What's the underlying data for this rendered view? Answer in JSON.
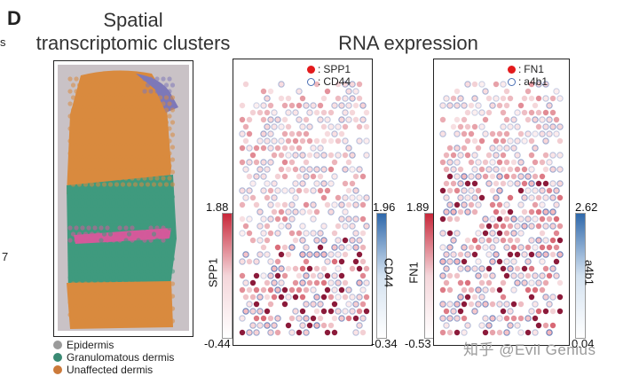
{
  "panel_label": "D",
  "left_edge_fragments": [
    "s",
    "7"
  ],
  "titles": {
    "clusters": "Spatial\ntranscriptomic clusters",
    "rna": "RNA expression"
  },
  "panel1": {
    "key_marker_a": "SPP1",
    "key_marker_b": "CD44",
    "colorbar_left": {
      "label": "SPP1",
      "max": "1.88",
      "min": "-0.44",
      "color": "#c8283a"
    },
    "colorbar_right": {
      "label": "CD44",
      "max": "1.96",
      "min": "-0.34",
      "color": "#3a6fb0"
    }
  },
  "panel2": {
    "key_marker_a": "FN1",
    "key_marker_b": "a4b1",
    "colorbar_left": {
      "label": "FN1",
      "max": "1.89",
      "min": "-0.53",
      "color": "#c8283a"
    },
    "colorbar_right": {
      "label": "a4b1",
      "max": "2.62",
      "min": "0.04",
      "color": "#3a6fb0"
    }
  },
  "cluster_legend": [
    {
      "label": "Epidermis",
      "color": "#9a9a9a"
    },
    {
      "label": "Granulomatous dermis",
      "color": "#3a8a74"
    },
    {
      "label": "Unaffected dermis",
      "color": "#cc7a3a"
    }
  ],
  "key_separator": ":",
  "watermark": "知乎 @Evil Genius",
  "colors": {
    "red": "#e31a1c",
    "blue": "#4a6fb5",
    "orange": "#d98a3e",
    "green": "#3f9a7e",
    "pink": "#d35a9a",
    "purple": "#7d78b8"
  }
}
